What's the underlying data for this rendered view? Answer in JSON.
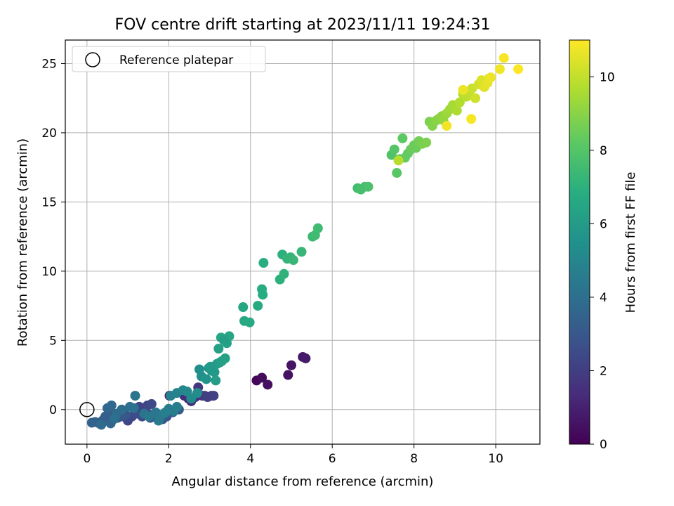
{
  "chart_data": {
    "type": "scatter",
    "title": "FOV centre drift starting at 2023/11/11 19:24:31",
    "xlabel": "Angular distance from reference (arcmin)",
    "ylabel": "Rotation from reference (arcmin)",
    "xlim": [
      -0.53,
      11.08
    ],
    "ylim": [
      -2.5,
      26.7
    ],
    "x_ticks": [
      0,
      2,
      4,
      6,
      8,
      10
    ],
    "y_ticks": [
      0,
      5,
      10,
      15,
      20,
      25
    ],
    "grid": true,
    "legend": {
      "placement": "upper-left",
      "entries": [
        "Reference platepar"
      ]
    },
    "reference_point": {
      "x": 0,
      "y": 0
    },
    "colorbar": {
      "label": "Hours from first FF file",
      "colormap": "viridis",
      "range": [
        0,
        11
      ],
      "ticks": [
        0,
        2,
        4,
        6,
        8,
        10
      ]
    },
    "series": [
      {
        "marker": "filled-circle",
        "x": [
          4.15,
          4.28,
          4.42,
          4.92,
          5.0,
          5.28,
          5.35,
          2.02,
          2.48,
          2.38,
          2.55,
          2.65,
          2.72,
          2.82,
          2.88,
          2.95,
          3.05,
          3.1,
          1.0,
          1.1,
          1.2,
          1.35,
          1.45,
          1.55,
          1.65,
          0.95,
          0.85,
          0.75,
          0.65,
          0.55,
          0.45,
          0.38,
          0.3,
          0.2,
          0.12,
          1.28,
          1.48,
          1.58,
          1.72,
          1.85,
          1.95,
          2.1,
          2.25,
          0.5,
          0.6,
          0.72,
          0.85,
          1.05,
          1.15,
          1.4,
          1.68,
          1.78,
          1.88,
          2.0,
          2.12,
          2.2,
          0.58,
          0.35,
          0.68,
          1.18,
          1.52,
          1.75,
          1.92,
          2.05,
          2.2,
          2.35,
          2.45,
          2.55,
          2.7,
          2.75,
          2.8,
          2.92,
          2.98,
          3.05,
          3.12,
          3.18,
          3.25,
          3.3,
          3.38,
          3.42,
          3.48,
          3.28,
          3.22,
          3.35,
          3.15,
          3.02,
          3.82,
          3.85,
          3.98,
          4.18,
          4.3,
          4.28,
          4.32,
          4.72,
          4.78,
          4.82,
          4.9,
          4.98,
          5.05,
          5.25,
          5.52,
          5.58,
          5.65,
          6.62,
          6.7,
          6.8,
          6.88,
          7.45,
          7.52,
          7.58,
          7.65,
          7.72,
          7.78,
          7.85,
          7.92,
          8.0,
          8.05,
          8.12,
          8.2,
          8.3,
          8.38,
          8.45,
          8.55,
          8.6,
          8.68,
          7.62,
          8.72,
          8.8,
          8.88,
          8.95,
          9.05,
          9.12,
          9.2,
          9.28,
          9.35,
          9.42,
          9.5,
          9.58,
          9.65,
          9.72,
          9.8,
          9.82,
          9.88,
          10.1,
          10.2,
          10.55,
          9.4,
          8.8,
          9.2
        ],
        "y": [
          2.1,
          2.3,
          1.8,
          2.5,
          3.2,
          3.8,
          3.7,
          1.0,
          0.8,
          1.0,
          0.6,
          0.9,
          1.6,
          1.0,
          1.0,
          0.9,
          1.0,
          1.0,
          -0.8,
          -0.5,
          -0.3,
          -0.5,
          -0.2,
          -0.6,
          -0.3,
          -0.4,
          -0.5,
          -0.6,
          -0.7,
          -0.3,
          -0.5,
          -0.8,
          -1.0,
          -0.9,
          -0.95,
          0.2,
          0.3,
          0.4,
          -0.4,
          -0.7,
          -0.5,
          -0.2,
          0.0,
          0.1,
          0.3,
          -0.3,
          0.0,
          0.2,
          0.1,
          -0.3,
          -0.2,
          -0.6,
          -0.3,
          0.05,
          -0.1,
          0.2,
          -1.0,
          -1.1,
          -0.6,
          1.0,
          -0.5,
          -0.8,
          -0.2,
          1.0,
          1.2,
          1.4,
          1.3,
          0.8,
          1.2,
          2.9,
          2.4,
          2.2,
          3.0,
          2.8,
          2.7,
          3.3,
          3.4,
          3.5,
          3.7,
          4.8,
          5.3,
          5.2,
          4.4,
          5.0,
          2.1,
          3.1,
          7.4,
          6.4,
          6.3,
          7.5,
          8.3,
          8.7,
          10.6,
          9.4,
          11.2,
          9.8,
          10.9,
          11.0,
          10.8,
          11.4,
          12.5,
          12.6,
          13.1,
          16.0,
          15.9,
          16.1,
          16.1,
          18.4,
          18.8,
          17.1,
          18.1,
          19.6,
          18.2,
          18.5,
          18.8,
          19.1,
          18.9,
          19.4,
          19.2,
          19.3,
          20.8,
          20.5,
          20.9,
          21.0,
          21.2,
          18.0,
          20.9,
          21.4,
          21.7,
          22.0,
          21.6,
          22.2,
          22.8,
          22.6,
          23.0,
          23.2,
          22.5,
          23.5,
          23.8,
          23.3,
          23.6,
          23.9,
          24.0,
          24.6,
          25.4,
          24.6,
          21.0,
          20.5,
          23.1
        ],
        "hours": [
          0.2,
          0.3,
          0.4,
          0.5,
          0.6,
          0.7,
          0.8,
          1.2,
          1.3,
          1.4,
          1.5,
          1.6,
          1.7,
          1.8,
          1.9,
          2.0,
          2.0,
          2.1,
          2.3,
          2.4,
          2.5,
          2.6,
          2.6,
          2.7,
          2.8,
          2.9,
          3.0,
          3.0,
          3.1,
          3.2,
          3.3,
          3.3,
          3.4,
          3.5,
          3.5,
          2.2,
          2.3,
          2.4,
          2.7,
          2.8,
          2.9,
          3.1,
          3.2,
          3.6,
          3.7,
          3.8,
          3.9,
          4.0,
          4.1,
          4.2,
          4.3,
          4.4,
          4.5,
          4.6,
          4.6,
          4.7,
          3.6,
          3.8,
          4.0,
          4.2,
          4.4,
          4.5,
          4.7,
          4.8,
          4.9,
          5.0,
          5.1,
          5.2,
          5.3,
          5.4,
          5.5,
          5.6,
          5.7,
          5.8,
          5.9,
          6.0,
          6.1,
          6.2,
          6.3,
          6.3,
          6.4,
          6.5,
          6.2,
          6.1,
          6.0,
          5.9,
          6.5,
          6.6,
          6.7,
          6.7,
          6.8,
          6.8,
          6.9,
          7.0,
          7.0,
          7.1,
          7.2,
          7.2,
          7.3,
          7.3,
          7.4,
          7.5,
          7.5,
          7.6,
          7.7,
          7.7,
          7.8,
          7.9,
          8.0,
          8.1,
          8.1,
          8.2,
          8.3,
          8.3,
          8.4,
          8.5,
          8.5,
          8.6,
          8.7,
          8.8,
          8.8,
          8.9,
          9.0,
          9.0,
          9.1,
          9.8,
          9.2,
          9.3,
          9.4,
          9.5,
          9.6,
          9.7,
          9.8,
          9.9,
          10.0,
          10.1,
          10.2,
          10.3,
          10.4,
          10.5,
          10.6,
          10.6,
          10.7,
          10.8,
          10.9,
          11.0,
          10.9,
          10.8,
          10.7
        ]
      }
    ]
  }
}
